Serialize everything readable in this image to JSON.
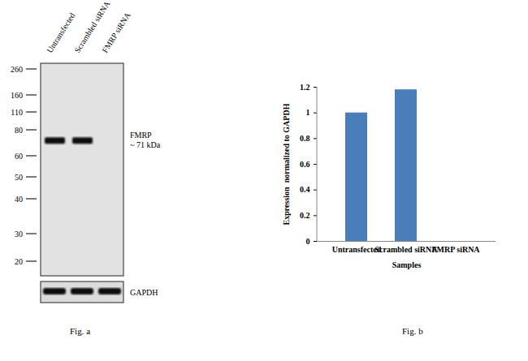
{
  "blot": {
    "caption": "Fig. a",
    "lanes": [
      "Untransfected",
      "Scrambled siRNA",
      "FMRP siRNA"
    ],
    "markers": [
      260,
      160,
      110,
      80,
      60,
      50,
      40,
      30,
      20
    ],
    "band": {
      "label": [
        "FMRP",
        "~ 71 kDa"
      ],
      "kda": 71,
      "present": [
        true,
        true,
        false
      ]
    },
    "loading_control": {
      "label": "GAPDH",
      "present": [
        true,
        true,
        true
      ]
    }
  },
  "chart_data": {
    "type": "bar",
    "caption": "Fig. b",
    "categories": [
      "Untransfected",
      "Scrambled siRNA",
      "FMRP siRNA"
    ],
    "values": [
      1,
      1.18,
      0
    ],
    "color": "#4a7ebb",
    "x_label": "Samples",
    "y_label": "Expression  normalized to GAPDH",
    "ylim": [
      0,
      1.2
    ],
    "yticks": [
      0,
      0.2,
      0.4,
      0.6,
      0.8,
      1,
      1.2
    ],
    "grid": false
  }
}
